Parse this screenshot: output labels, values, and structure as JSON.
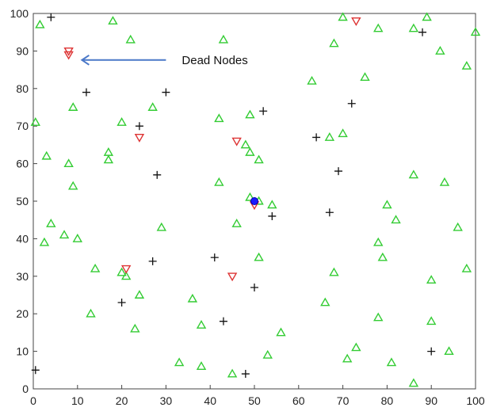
{
  "chart_data": {
    "type": "scatter",
    "xlim": [
      0,
      100
    ],
    "ylim": [
      0,
      100
    ],
    "grid": false,
    "legend": "none",
    "xticks": [
      "0",
      "10",
      "20",
      "30",
      "40",
      "50",
      "60",
      "70",
      "80",
      "90",
      "100"
    ],
    "yticks": [
      "0",
      "10",
      "20",
      "30",
      "40",
      "50",
      "60",
      "70",
      "80",
      "90",
      "100"
    ],
    "annotation": {
      "text": "Dead Nodes",
      "arrow_from": [
        30,
        87.6
      ],
      "arrow_to": [
        11,
        87.6
      ]
    },
    "series": [
      {
        "marker": "triangle-up",
        "color": "#33cc33",
        "points": [
          [
            1.5,
            97
          ],
          [
            18,
            98
          ],
          [
            22,
            93
          ],
          [
            43,
            93
          ],
          [
            68,
            92
          ],
          [
            70,
            99
          ],
          [
            78,
            96
          ],
          [
            86,
            96
          ],
          [
            89,
            99
          ],
          [
            92,
            90
          ],
          [
            98,
            86
          ],
          [
            100,
            95
          ],
          [
            9,
            75
          ],
          [
            27,
            75
          ],
          [
            20,
            71
          ],
          [
            42,
            72
          ],
          [
            49,
            73
          ],
          [
            63,
            82
          ],
          [
            75,
            83
          ],
          [
            0.5,
            71
          ],
          [
            3,
            62
          ],
          [
            8,
            60
          ],
          [
            9,
            54
          ],
          [
            17,
            63
          ],
          [
            17,
            61
          ],
          [
            48,
            65
          ],
          [
            49,
            63
          ],
          [
            51,
            61
          ],
          [
            67,
            67
          ],
          [
            70,
            68
          ],
          [
            86,
            57
          ],
          [
            93,
            55
          ],
          [
            42,
            55
          ],
          [
            49,
            51
          ],
          [
            51,
            50
          ],
          [
            54,
            49
          ],
          [
            46,
            44
          ],
          [
            4,
            44
          ],
          [
            7,
            41
          ],
          [
            10,
            40
          ],
          [
            2.5,
            39
          ],
          [
            14,
            32
          ],
          [
            20,
            31
          ],
          [
            21,
            30
          ],
          [
            29,
            43
          ],
          [
            51,
            35
          ],
          [
            68,
            31
          ],
          [
            78,
            39
          ],
          [
            79,
            35
          ],
          [
            80,
            49
          ],
          [
            82,
            45
          ],
          [
            98,
            32
          ],
          [
            96,
            43
          ],
          [
            90,
            29
          ],
          [
            13,
            20
          ],
          [
            24,
            25
          ],
          [
            23,
            16
          ],
          [
            36,
            24
          ],
          [
            38,
            17
          ],
          [
            33,
            7
          ],
          [
            38,
            6
          ],
          [
            45,
            4
          ],
          [
            53,
            9
          ],
          [
            56,
            15
          ],
          [
            66,
            23
          ],
          [
            78,
            19
          ],
          [
            71,
            8
          ],
          [
            73,
            11
          ],
          [
            81,
            7
          ],
          [
            86,
            1.5
          ],
          [
            90,
            18
          ],
          [
            94,
            10
          ]
        ]
      },
      {
        "marker": "triangle-down",
        "color": "#dd3333",
        "points": [
          [
            8,
            90
          ],
          [
            8,
            89
          ],
          [
            24,
            67
          ],
          [
            46,
            66
          ],
          [
            73,
            98
          ],
          [
            21,
            32
          ],
          [
            45,
            30
          ],
          [
            50,
            49
          ]
        ]
      },
      {
        "marker": "plus",
        "color": "#111111",
        "points": [
          [
            4,
            99
          ],
          [
            88,
            95
          ],
          [
            12,
            79
          ],
          [
            30,
            79
          ],
          [
            24,
            70
          ],
          [
            28,
            57
          ],
          [
            52,
            74
          ],
          [
            72,
            76
          ],
          [
            64,
            67
          ],
          [
            69,
            58
          ],
          [
            67,
            47
          ],
          [
            54,
            46
          ],
          [
            27,
            34
          ],
          [
            41,
            35
          ],
          [
            50,
            27
          ],
          [
            20,
            23
          ],
          [
            43,
            18
          ],
          [
            48,
            4
          ],
          [
            90,
            10
          ],
          [
            0.5,
            5
          ]
        ]
      },
      {
        "marker": "circle",
        "color": "#1a1aff",
        "points": [
          [
            50,
            50
          ]
        ]
      }
    ]
  }
}
